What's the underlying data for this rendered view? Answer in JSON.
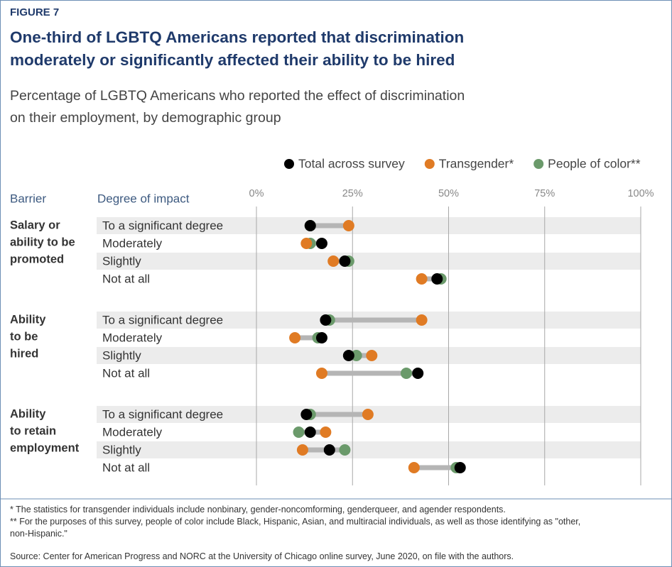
{
  "chart_data": {
    "type": "dot",
    "figure_label": "FIGURE 7",
    "title_lines": [
      "One-third of LGBTQ Americans reported that discrimination",
      "moderately or significantly affected their ability to be hired"
    ],
    "subtitle_lines": [
      "Percentage of LGBTQ Americans who reported the effect of discrimination",
      "on their employment, by demographic group"
    ],
    "column_headers": [
      "Barrier",
      "Degree of impact"
    ],
    "groups": [
      {
        "name_lines": [
          "Salary or",
          "ability to be",
          "promoted"
        ],
        "categories": [
          "To a significant degree",
          "Moderately",
          "Slightly",
          "Not at all"
        ]
      },
      {
        "name_lines": [
          "Ability",
          "to be",
          "hired"
        ],
        "categories": [
          "To a significant degree",
          "Moderately",
          "Slightly",
          "Not at all"
        ]
      },
      {
        "name_lines": [
          "Ability",
          "to retain",
          "employment"
        ],
        "categories": [
          "To a significant degree",
          "Moderately",
          "Slightly",
          "Not at all"
        ]
      }
    ],
    "series": [
      {
        "name": "Total across survey",
        "color": "#000000",
        "values": [
          14,
          17,
          23,
          47,
          18,
          17,
          24,
          42,
          13,
          14,
          19,
          53
        ]
      },
      {
        "name": "Transgender*",
        "color": "#e07b24",
        "values": [
          24,
          13,
          20,
          43,
          43,
          10,
          30,
          17,
          29,
          18,
          12,
          41
        ]
      },
      {
        "name": "People of color**",
        "color": "#6b9a6b",
        "values": [
          14,
          14,
          24,
          48,
          19,
          16,
          26,
          39,
          14,
          11,
          23,
          52
        ]
      }
    ],
    "xlim": [
      0,
      100
    ],
    "xticks": [
      {
        "value": 0,
        "label": "0%"
      },
      {
        "value": 25,
        "label": "25%"
      },
      {
        "value": 50,
        "label": "50%"
      },
      {
        "value": 75,
        "label": "75%"
      },
      {
        "value": 100,
        "label": "100%"
      }
    ],
    "grid": true,
    "footnotes": [
      "* The statistics for transgender individuals include nonbinary, gender-noncomforming, genderqueer, and agender respondents.",
      "** For the purposes of this survey, people of color include Black, Hispanic, Asian, and multiracial individuals, as well as those identifying as \"other, non-Hispanic.\""
    ],
    "source": "Source: Center for American Progress and NORC at the University of Chicago online survey, June 2020, on file with the authors."
  }
}
